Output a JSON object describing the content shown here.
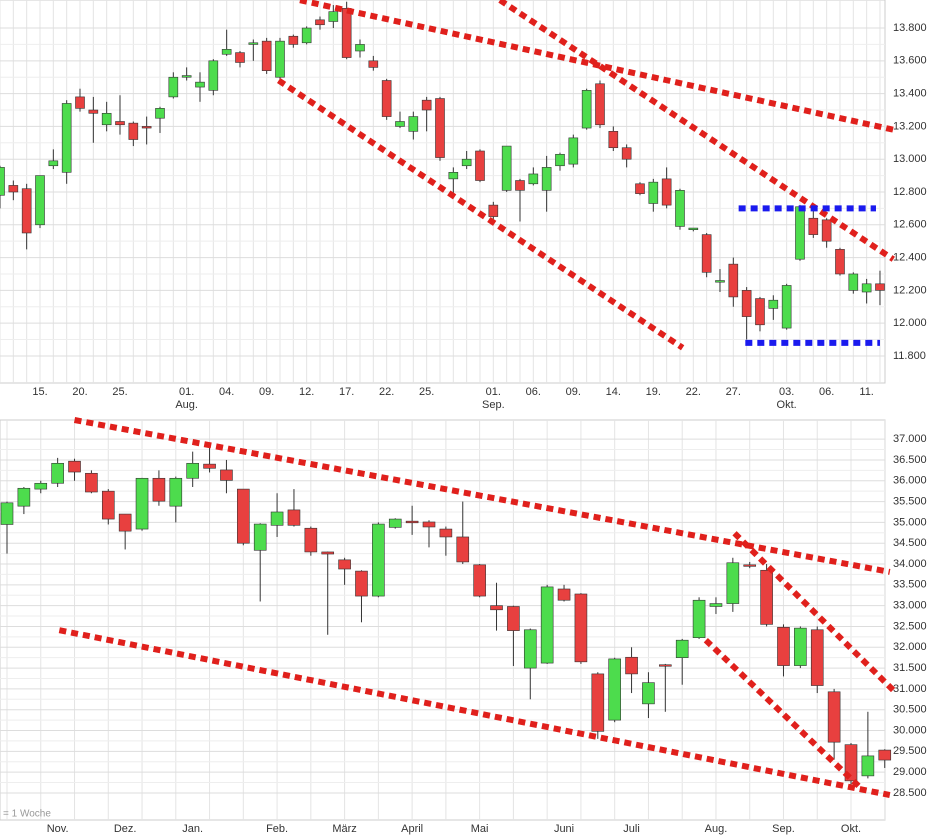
{
  "chart_data": [
    {
      "type": "candlestick",
      "categories": [
        null,
        null,
        null,
        "15.",
        null,
        null,
        "20.",
        null,
        null,
        "25.",
        null,
        null,
        null,
        null,
        "01.",
        null,
        null,
        "04.",
        null,
        null,
        "09.",
        null,
        null,
        "12.",
        null,
        null,
        "17.",
        null,
        null,
        "22.",
        null,
        null,
        "25.",
        null,
        null,
        null,
        null,
        "01.",
        null,
        null,
        "06.",
        null,
        null,
        "09.",
        null,
        null,
        "14.",
        null,
        null,
        "19.",
        null,
        null,
        "22.",
        null,
        null,
        "27.",
        null,
        null,
        null,
        "03.",
        null,
        null,
        "06.",
        null,
        null,
        "11.",
        null
      ],
      "months": [
        null,
        null,
        null,
        null,
        null,
        null,
        null,
        null,
        null,
        null,
        null,
        null,
        null,
        null,
        "Aug.",
        null,
        null,
        null,
        null,
        null,
        null,
        null,
        null,
        null,
        null,
        null,
        null,
        null,
        null,
        null,
        null,
        null,
        null,
        null,
        null,
        null,
        null,
        "Sep.",
        null,
        null,
        null,
        null,
        null,
        null,
        null,
        null,
        null,
        null,
        null,
        null,
        null,
        null,
        null,
        null,
        null,
        null,
        null,
        null,
        null,
        "Okt.",
        null,
        null,
        null,
        null,
        null,
        null,
        null
      ],
      "open": [
        12780,
        12840,
        12820,
        12600,
        12960,
        12920,
        13380,
        13300,
        13210,
        13230,
        13220,
        13200,
        13250,
        13380,
        13500,
        13440,
        13420,
        13640,
        13650,
        13700,
        13720,
        13500,
        13750,
        13710,
        13850,
        13840,
        13920,
        13660,
        13600,
        13480,
        13200,
        13170,
        13360,
        13370,
        12880,
        12960,
        13050,
        12720,
        12810,
        12870,
        12850,
        12810,
        12960,
        12970,
        13190,
        13460,
        13170,
        13070,
        12850,
        12730,
        12880,
        12590,
        12570,
        12540,
        12250,
        12360,
        12200,
        12150,
        12090,
        11970,
        12390,
        12640,
        12630,
        12450,
        12200,
        12190,
        12240
      ],
      "high": [
        12960,
        12870,
        12850,
        12900,
        13060,
        13360,
        13430,
        13380,
        13350,
        13390,
        13230,
        13260,
        13320,
        13530,
        13560,
        13530,
        13610,
        13790,
        13660,
        13730,
        13740,
        13740,
        13760,
        13810,
        13870,
        13940,
        13960,
        13730,
        13630,
        13490,
        13290,
        13290,
        13380,
        13380,
        12950,
        13050,
        13060,
        12740,
        13080,
        12880,
        12950,
        13020,
        13040,
        13150,
        13430,
        13480,
        13200,
        13090,
        12860,
        12880,
        12950,
        12820,
        12580,
        12550,
        12330,
        12400,
        12220,
        12160,
        12170,
        12240,
        12720,
        12700,
        12640,
        12460,
        12310,
        12270,
        12320
      ],
      "low": [
        12700,
        12750,
        12450,
        12580,
        12940,
        12850,
        13290,
        13100,
        13170,
        13150,
        13080,
        13090,
        13160,
        13370,
        13480,
        13350,
        13390,
        13630,
        13560,
        13600,
        13520,
        13480,
        13680,
        13700,
        13790,
        13800,
        13610,
        13620,
        13540,
        13240,
        13190,
        13120,
        13170,
        12990,
        12770,
        12940,
        12860,
        12620,
        12800,
        12620,
        12840,
        12680,
        12930,
        12950,
        13180,
        13190,
        13050,
        12950,
        12780,
        12680,
        12700,
        12570,
        12560,
        12280,
        12190,
        12100,
        11900,
        11950,
        12020,
        11960,
        12380,
        12520,
        12460,
        12290,
        12180,
        12120,
        12110
      ],
      "close": [
        12950,
        12800,
        12550,
        12900,
        12990,
        13340,
        13310,
        13280,
        13280,
        13210,
        13120,
        13190,
        13310,
        13500,
        13510,
        13470,
        13600,
        13670,
        13590,
        13710,
        13540,
        13720,
        13700,
        13800,
        13820,
        13900,
        13620,
        13700,
        13560,
        13260,
        13230,
        13260,
        13300,
        13010,
        12920,
        13000,
        12870,
        12650,
        13080,
        12810,
        12910,
        12950,
        13030,
        13130,
        13420,
        13210,
        13070,
        13000,
        12790,
        12860,
        12720,
        12810,
        12580,
        12310,
        12260,
        12160,
        12040,
        11990,
        12140,
        12230,
        12710,
        12540,
        12500,
        12300,
        12300,
        12240,
        12200
      ],
      "up_color": "#4ddc4d",
      "down_color": "#e8403f",
      "ylim": [
        11635,
        13971
      ],
      "yticks": [
        {
          "value": 11800,
          "label": "11.800"
        },
        {
          "value": 12000,
          "label": "12.000"
        },
        {
          "value": 12200,
          "label": "12.200"
        },
        {
          "value": 12400,
          "label": "12.400"
        },
        {
          "value": 12600,
          "label": "12.600"
        },
        {
          "value": 12800,
          "label": "12.800"
        },
        {
          "value": 13000,
          "label": "13.000"
        },
        {
          "value": 13200,
          "label": "13.200"
        },
        {
          "value": 13400,
          "label": "13.400"
        },
        {
          "value": 13600,
          "label": "13.600"
        },
        {
          "value": 13800,
          "label": "13.800"
        }
      ],
      "grid": true,
      "trendlines": [
        {
          "color": "#e0201c",
          "x": [
            22.5,
            67
          ],
          "y": [
            13970,
            13180
          ]
        },
        {
          "color": "#e0201c",
          "x": [
            37.5,
            67
          ],
          "y": [
            13970,
            12390
          ]
        },
        {
          "color": "#e0201c",
          "x": [
            20.9,
            51.2
          ],
          "y": [
            13480,
            11850
          ]
        },
        {
          "color": "#1a1aee",
          "x": [
            55.4,
            65.7
          ],
          "y": [
            12700,
            12700
          ]
        },
        {
          "color": "#1a1aee",
          "x": [
            55.9,
            66
          ],
          "y": [
            11880,
            11880
          ]
        }
      ]
    },
    {
      "type": "candlestick",
      "categories": [
        null,
        null,
        null,
        "Nov.",
        null,
        null,
        null,
        "Dez.",
        null,
        null,
        null,
        "Jan.",
        null,
        null,
        null,
        null,
        "Feb.",
        null,
        null,
        null,
        "März",
        null,
        null,
        null,
        "April",
        null,
        null,
        null,
        "Mai",
        null,
        null,
        null,
        null,
        "Juni",
        null,
        null,
        null,
        "Juli",
        null,
        null,
        null,
        null,
        "Aug.",
        null,
        null,
        null,
        "Sep.",
        null,
        null,
        null,
        "Okt.",
        null,
        null
      ],
      "open": [
        34950,
        35390,
        35800,
        35940,
        36470,
        36180,
        35750,
        35200,
        34840,
        36060,
        35390,
        36060,
        36400,
        36260,
        35800,
        34330,
        34930,
        35300,
        34860,
        34290,
        34100,
        33830,
        33230,
        34880,
        35030,
        35010,
        34840,
        34650,
        33980,
        33000,
        32980,
        31500,
        31620,
        33400,
        33280,
        31360,
        30250,
        31760,
        30640,
        31580,
        31750,
        32230,
        32980,
        33050,
        33980,
        33850,
        32480,
        31560,
        32420,
        30930,
        29660,
        28910,
        29530
      ],
      "high": [
        35500,
        35850,
        36000,
        36550,
        36530,
        36250,
        35800,
        35200,
        36070,
        36250,
        36100,
        36700,
        36900,
        36500,
        35800,
        34980,
        35700,
        35800,
        34900,
        34300,
        34150,
        33850,
        35000,
        35100,
        35400,
        35050,
        34900,
        35500,
        34000,
        33550,
        33000,
        32450,
        33500,
        33500,
        33300,
        31400,
        31750,
        32000,
        31400,
        31600,
        32200,
        33200,
        33200,
        34150,
        34050,
        34000,
        32550,
        32500,
        32500,
        31000,
        29700,
        30450,
        29550
      ],
      "low": [
        34250,
        35200,
        35700,
        35850,
        36000,
        35700,
        34950,
        34350,
        34800,
        35400,
        35000,
        35850,
        36200,
        35700,
        34450,
        33100,
        34650,
        34900,
        34200,
        32300,
        33500,
        32600,
        33200,
        34850,
        34700,
        34400,
        34200,
        34000,
        33200,
        32400,
        31550,
        30750,
        31600,
        33100,
        31600,
        29800,
        30200,
        30900,
        30300,
        30450,
        31100,
        32200,
        32800,
        32850,
        33900,
        32500,
        31300,
        31500,
        30900,
        29300,
        28700,
        28850,
        29100
      ],
      "close": [
        35470,
        35820,
        35940,
        36420,
        36210,
        35730,
        35080,
        34790,
        36060,
        35510,
        36060,
        36420,
        36300,
        36010,
        34500,
        34960,
        35250,
        34930,
        34290,
        34240,
        33880,
        33230,
        34960,
        35080,
        34990,
        34890,
        34650,
        34050,
        33230,
        32900,
        32400,
        32420,
        33450,
        33130,
        31650,
        29980,
        31720,
        31360,
        31150,
        31550,
        32170,
        33130,
        33050,
        34030,
        33950,
        32550,
        31560,
        32460,
        31080,
        29720,
        28790,
        29390,
        29290
      ],
      "up_color": "#4ddc4d",
      "down_color": "#e8403f",
      "ylim": [
        27850,
        37460
      ],
      "yticks": [
        {
          "value": 28500,
          "label": "28.500"
        },
        {
          "value": 29000,
          "label": "29.000"
        },
        {
          "value": 29500,
          "label": "29.500"
        },
        {
          "value": 30000,
          "label": "30.000"
        },
        {
          "value": 30500,
          "label": "30.500"
        },
        {
          "value": 31000,
          "label": "31.000"
        },
        {
          "value": 31500,
          "label": "31.500"
        },
        {
          "value": 32000,
          "label": "32.000"
        },
        {
          "value": 32500,
          "label": "32.500"
        },
        {
          "value": 33000,
          "label": "33.000"
        },
        {
          "value": 33500,
          "label": "33.500"
        },
        {
          "value": 34000,
          "label": "34.000"
        },
        {
          "value": 34500,
          "label": "34.500"
        },
        {
          "value": 35000,
          "label": "35.000"
        },
        {
          "value": 35500,
          "label": "35.500"
        },
        {
          "value": 36000,
          "label": "36.000"
        },
        {
          "value": 36500,
          "label": "36.500"
        },
        {
          "value": 37000,
          "label": "37.000"
        }
      ],
      "grid": true,
      "note": "= 1 Woche",
      "trendlines": [
        {
          "color": "#e0201c",
          "x": [
            4.0,
            52.3
          ],
          "y": [
            37460,
            33810
          ]
        },
        {
          "color": "#e0201c",
          "x": [
            3.1,
            52.3
          ],
          "y": [
            32410,
            28450
          ]
        },
        {
          "color": "#e0201c",
          "x": [
            43.1,
            52.5
          ],
          "y": [
            34740,
            30970
          ]
        },
        {
          "color": "#e0201c",
          "x": [
            41.4,
            50.7
          ],
          "y": [
            32170,
            28570
          ]
        }
      ]
    }
  ]
}
